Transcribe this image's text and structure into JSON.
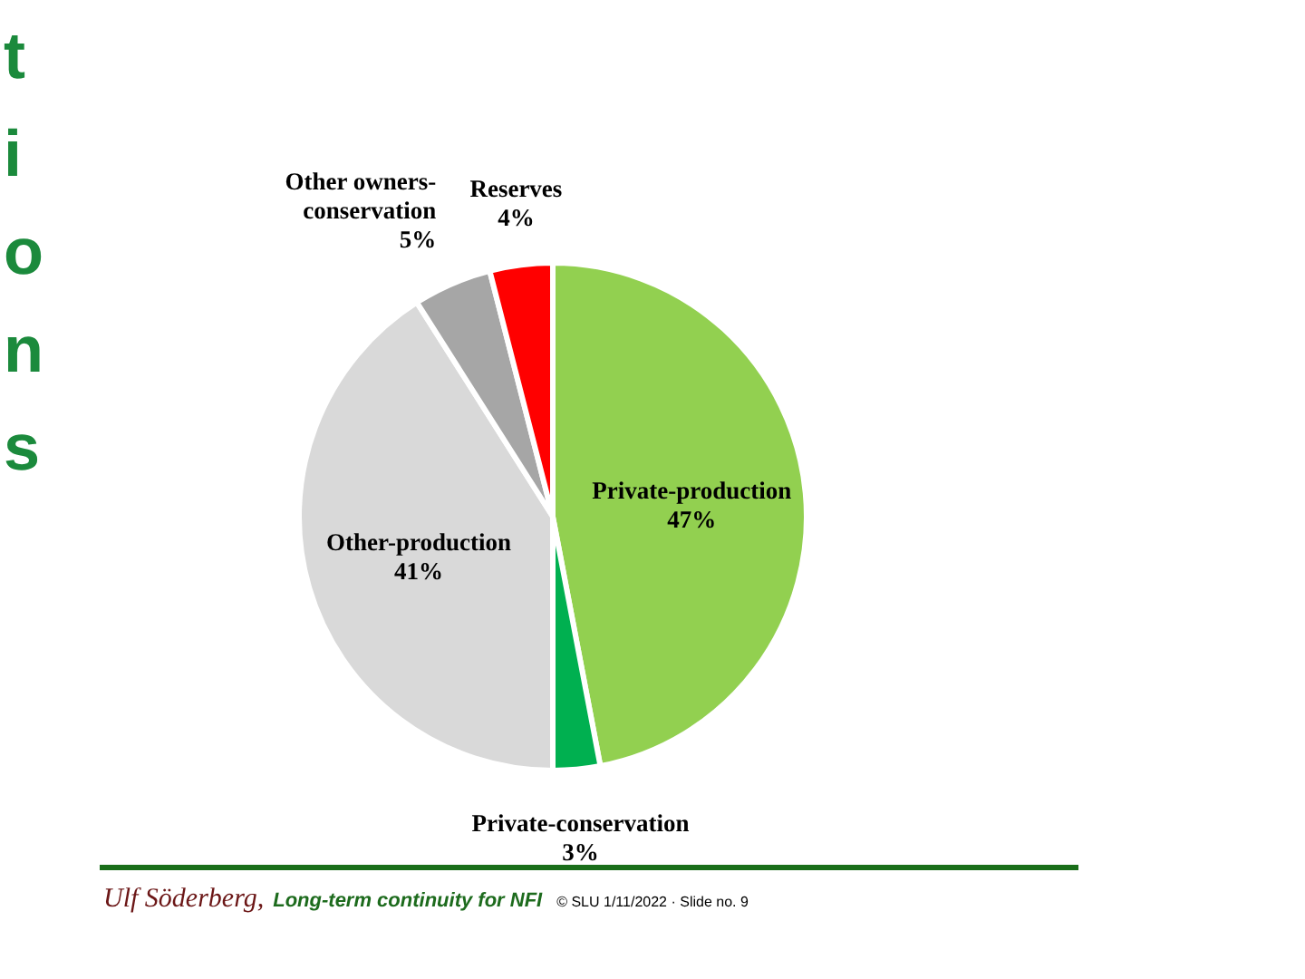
{
  "chart_data": {
    "type": "pie",
    "categories": [
      "Private-production",
      "Private-conservation",
      "Other-production",
      "Other owners-conservation",
      "Reserves"
    ],
    "values": [
      47,
      3,
      41,
      5,
      4
    ],
    "colors": [
      "#92d050",
      "#00b050",
      "#d9d9d9",
      "#a6a6a6",
      "#ff0000"
    ],
    "value_labels": [
      "47%",
      "3%",
      "41%",
      "5%",
      "4%"
    ],
    "annotations": [
      "tions",
      "Ulf Söderberg,",
      "Long-term continuity for NFI",
      "© SLU 1/11/2022 · Slide no. 9"
    ]
  }
}
